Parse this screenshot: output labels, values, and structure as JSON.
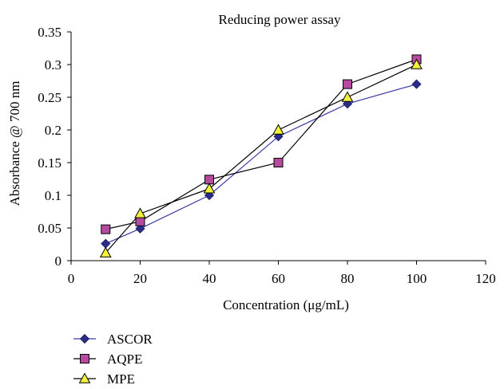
{
  "chart_data": {
    "type": "line",
    "title": "Reducing power assay",
    "xlabel": "Concentration (μg/mL)",
    "ylabel": "Absorbance @ 700 nm",
    "xlim": [
      0,
      120
    ],
    "ylim": [
      0,
      0.35
    ],
    "x_ticks": [
      "0",
      "20",
      "40",
      "60",
      "80",
      "100",
      "120"
    ],
    "y_ticks": [
      "0",
      "0.05",
      "0.1",
      "0.15",
      "0.2",
      "0.25",
      "0.3",
      "0.35"
    ],
    "grid": false,
    "legend_position": "bottom-left",
    "series": [
      {
        "name": "ASCOR",
        "marker": "diamond",
        "color": "#2b2b8c",
        "line_color": "#3a3aa8",
        "x": [
          10,
          20,
          40,
          60,
          80,
          100
        ],
        "y": [
          0.026,
          0.049,
          0.1,
          0.19,
          0.24,
          0.27
        ]
      },
      {
        "name": "AQPE",
        "marker": "square",
        "color": "#b54a9e",
        "line_color": "#000000",
        "x": [
          10,
          20,
          40,
          60,
          80,
          100
        ],
        "y": [
          0.048,
          0.06,
          0.124,
          0.15,
          0.27,
          0.308
        ]
      },
      {
        "name": "MPE",
        "marker": "triangle",
        "color": "#f2f23c",
        "line_color": "#000000",
        "x": [
          10,
          20,
          40,
          60,
          80,
          100
        ],
        "y": [
          0.012,
          0.072,
          0.11,
          0.2,
          0.25,
          0.3
        ]
      }
    ]
  }
}
